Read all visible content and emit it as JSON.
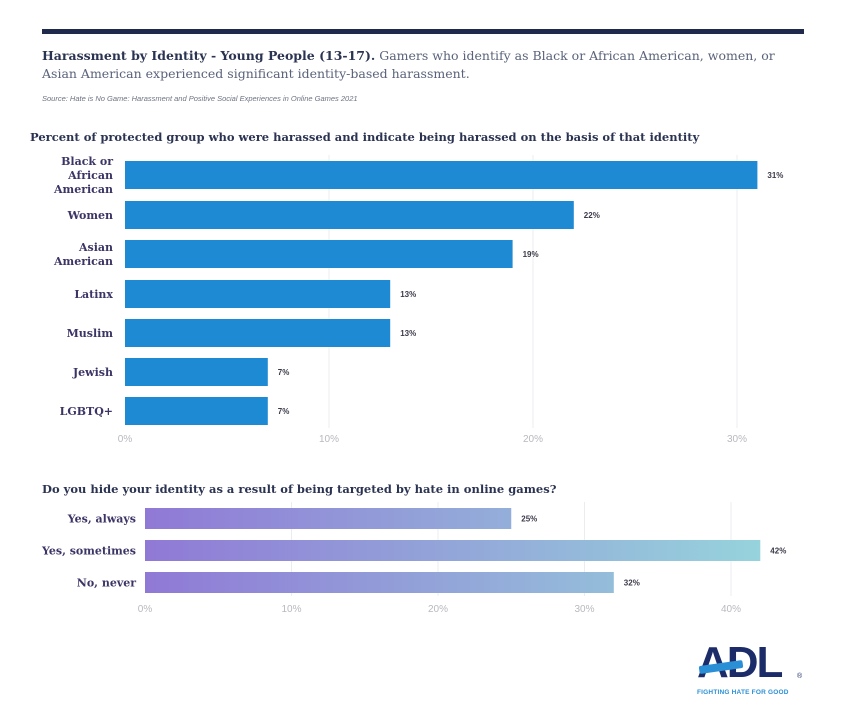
{
  "header": {
    "headline_bold": "Harassment by Identity - Young People (13-17).",
    "headline_rest": " Gamers who identify as Black or African American, women, or Asian American experienced significant identity-based harassment.",
    "source": "Source: Hate is No Game: Harassment and Positive Social Experiences in Online Games 2021"
  },
  "colors": {
    "rule": "#1f2a4c",
    "bar_blue": "#1f8ad4",
    "gradient_start": "#9079d6",
    "gradient_end": "#96d3dc"
  },
  "chart_data": [
    {
      "type": "bar",
      "orientation": "horizontal",
      "title": "Percent of protected group who were harassed and indicate being harassed on the basis of that identity",
      "categories": [
        "Black or African American",
        "Women",
        "Asian American",
        "Latinx",
        "Muslim",
        "Jewish",
        "LGBTQ+"
      ],
      "category_lines": [
        [
          "Black or",
          "African",
          "American"
        ],
        [
          "Women"
        ],
        [
          "Asian",
          "American"
        ],
        [
          "Latinx"
        ],
        [
          "Muslim"
        ],
        [
          "Jewish"
        ],
        [
          "LGBTQ+"
        ]
      ],
      "values": [
        31,
        22,
        19,
        13,
        13,
        7,
        7
      ],
      "value_labels": [
        "31%",
        "22%",
        "19%",
        "13%",
        "13%",
        "7%",
        "7%"
      ],
      "xlim": [
        0,
        31
      ],
      "ticks": [
        0,
        10,
        20,
        30
      ],
      "tick_labels": [
        "0%",
        "10%",
        "20%",
        "30%"
      ],
      "xlabel": "",
      "ylabel": "",
      "grid": true,
      "fill": "solid"
    },
    {
      "type": "bar",
      "orientation": "horizontal",
      "title": "Do you hide your identity as a result of being targeted by hate in online games?",
      "categories": [
        "Yes, always",
        "Yes, sometimes",
        "No, never"
      ],
      "category_lines": [
        [
          "Yes, always"
        ],
        [
          "Yes, sometimes"
        ],
        [
          "No, never"
        ]
      ],
      "values": [
        25,
        42,
        32
      ],
      "value_labels": [
        "25%",
        "42%",
        "32%"
      ],
      "xlim": [
        0,
        42
      ],
      "ticks": [
        0,
        10,
        20,
        30,
        40
      ],
      "tick_labels": [
        "0%",
        "10%",
        "20%",
        "30%",
        "40%"
      ],
      "xlabel": "",
      "ylabel": "",
      "grid": true,
      "fill": "gradient"
    }
  ],
  "logo": {
    "text": "ADL",
    "registered": "®",
    "tagline": "FIGHTING HATE FOR GOOD"
  }
}
